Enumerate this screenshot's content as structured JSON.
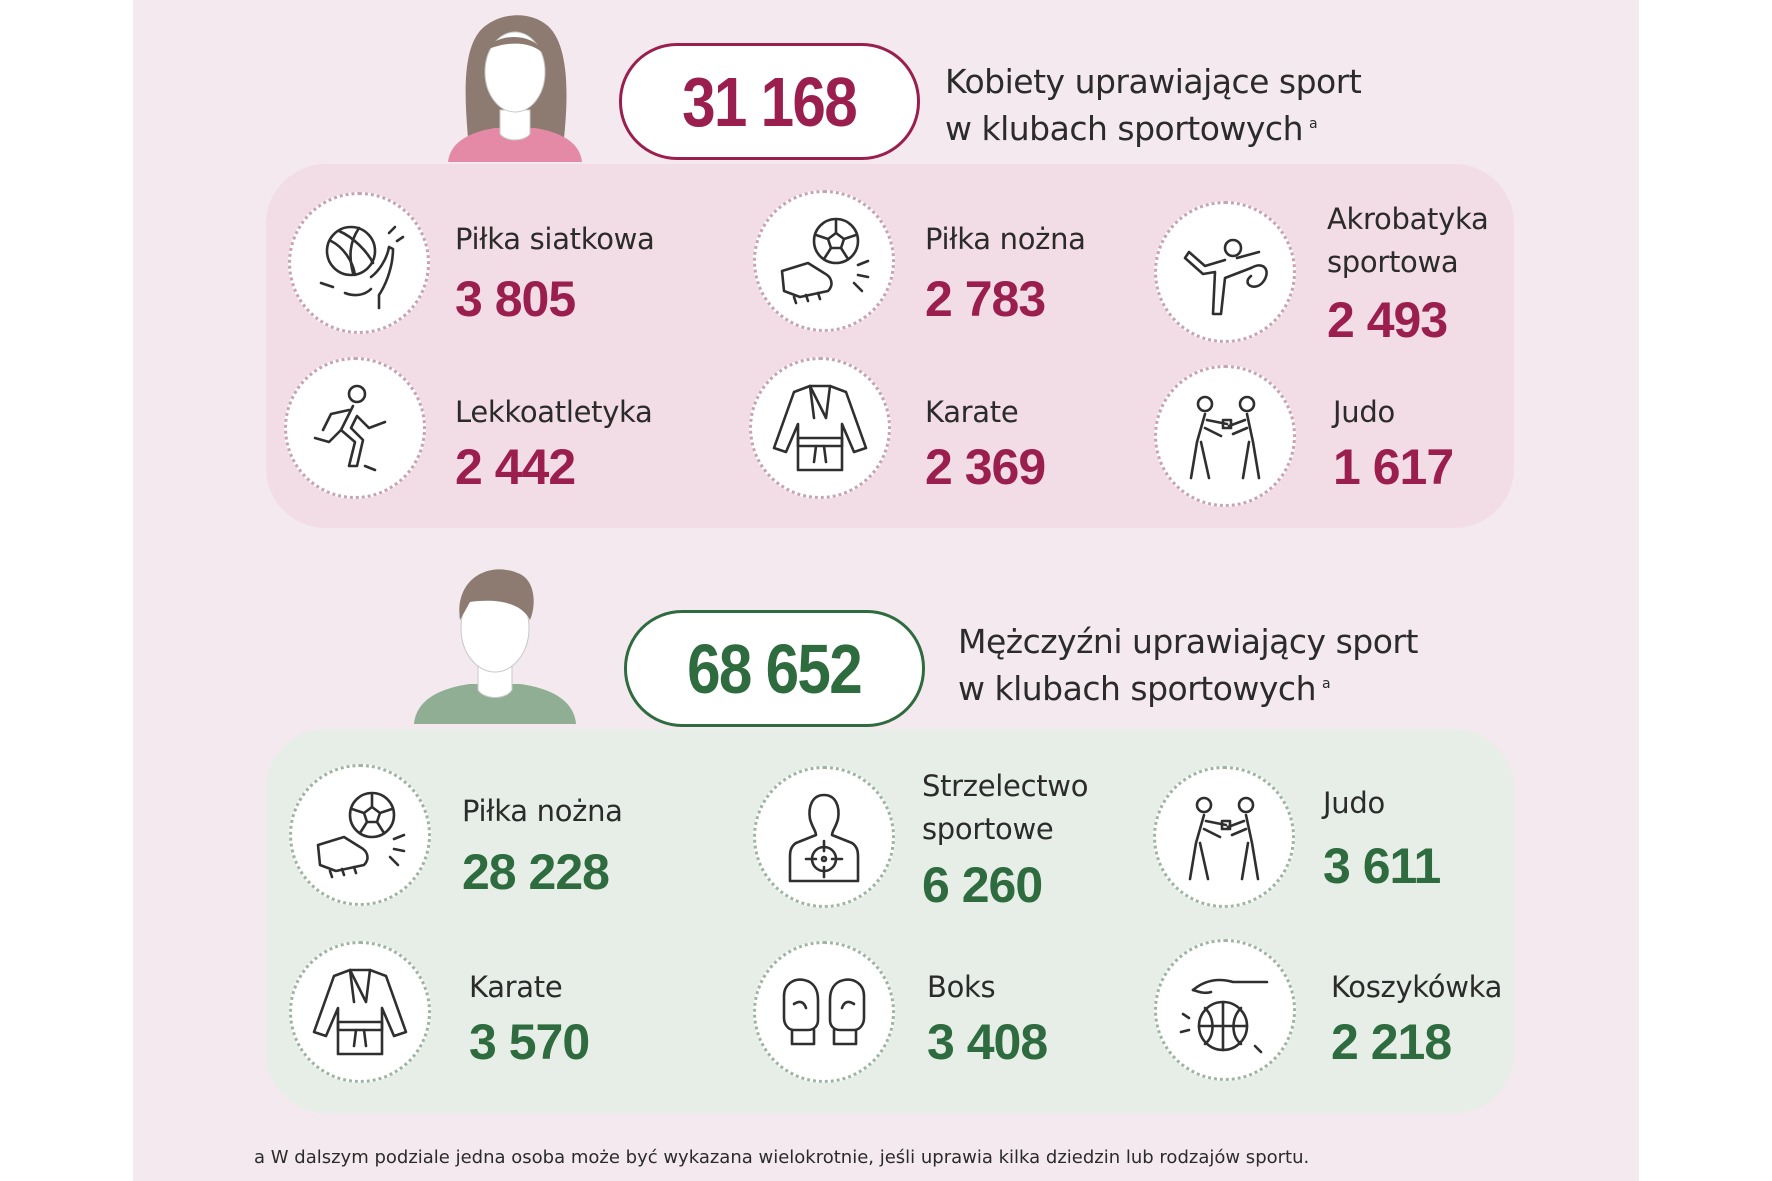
{
  "colors": {
    "women_accent": "#9b1f4e",
    "men_accent": "#2e6b3e",
    "women_card": "#f2dce5",
    "men_card": "#e6eee7",
    "panel": "#f3e9ee"
  },
  "women": {
    "total": "31 168",
    "title_line1": "Kobiety uprawiające sport",
    "title_line2": "w klubach sportowych",
    "footnote_mark": "a",
    "items": [
      {
        "label": "Piłka siatkowa",
        "value": "3 805",
        "icon": "volleyball-icon"
      },
      {
        "label": "Piłka nożna",
        "value": "2 783",
        "icon": "soccer-icon"
      },
      {
        "label_line1": "Akrobatyka",
        "label_line2": "sportowa",
        "value": "2 493",
        "icon": "acrobatics-icon"
      },
      {
        "label": "Lekkoatletyka",
        "value": "2 442",
        "icon": "runner-icon"
      },
      {
        "label": "Karate",
        "value": "2 369",
        "icon": "karate-gi-icon"
      },
      {
        "label": "Judo",
        "value": "1 617",
        "icon": "judo-icon"
      }
    ]
  },
  "men": {
    "total": "68 652",
    "title_line1": "Mężczyźni uprawiający sport",
    "title_line2": "w klubach sportowych",
    "footnote_mark": "a",
    "items": [
      {
        "label": "Piłka nożna",
        "value": "28 228",
        "icon": "soccer-icon"
      },
      {
        "label_line1": "Strzelectwo",
        "label_line2": "sportowe",
        "value": "6 260",
        "icon": "shooting-target-icon"
      },
      {
        "label": "Judo",
        "value": "3 611",
        "icon": "judo-icon"
      },
      {
        "label": "Karate",
        "value": "3 570",
        "icon": "karate-gi-icon"
      },
      {
        "label": "Boks",
        "value": "3 408",
        "icon": "boxing-gloves-icon"
      },
      {
        "label": "Koszykówka",
        "value": "2 218",
        "icon": "basketball-icon"
      }
    ]
  },
  "footnote": "a W dalszym podziale jedna osoba może być wykazana wielokrotnie, jeśli uprawia kilka dziedzin lub rodzajów sportu."
}
